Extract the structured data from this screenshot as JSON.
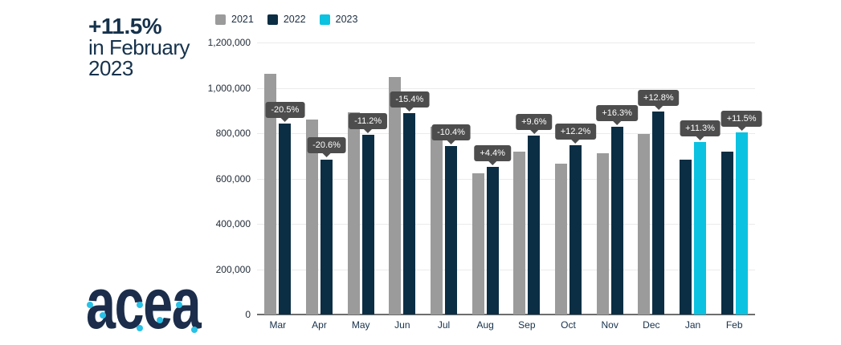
{
  "headline": {
    "line1": "+11.5%",
    "line2": "in February",
    "line3": "2023"
  },
  "legend": {
    "items": [
      {
        "label": "2021",
        "color": "#9b9b9b"
      },
      {
        "label": "2022",
        "color": "#0b2e44"
      },
      {
        "label": "2023",
        "color": "#0bc2e0"
      }
    ]
  },
  "logo": {
    "text": "acea"
  },
  "colors": {
    "accent_navy": "#0b2e44",
    "accent_cyan": "#0bc2e0",
    "bar_gray": "#9b9b9b",
    "tooltip_bg": "#4d4d4d",
    "tooltip_text": "#ffffff",
    "grid": "#ebebeb",
    "axis": "#6e6e6e",
    "text": "#16324c",
    "background": "#ffffff"
  },
  "chart_data": {
    "type": "bar",
    "title": "",
    "xlabel": "",
    "ylabel": "",
    "categories": [
      "Mar",
      "Apr",
      "May",
      "Jun",
      "Jul",
      "Aug",
      "Sep",
      "Oct",
      "Nov",
      "Dec",
      "Jan",
      "Feb"
    ],
    "y_axis": {
      "min": 0,
      "max": 1200000,
      "tick_labels": [
        "1,200,000",
        "1,000,000",
        "800,000",
        "600,000",
        "400,000",
        "200,000",
        "0"
      ],
      "grid": true
    },
    "legend_position": "top-left",
    "series": [
      {
        "name": "2021",
        "color": "#9b9b9b",
        "values": [
          1062000,
          862000,
          892000,
          1048000,
          828000,
          623000,
          719000,
          665000,
          713000,
          795000,
          null,
          null
        ]
      },
      {
        "name": "2022",
        "color": "#0b2e44",
        "values": [
          844000,
          685000,
          792000,
          887000,
          742000,
          650000,
          788000,
          746000,
          830000,
          897000,
          683000,
          720000
        ]
      },
      {
        "name": "2023",
        "color": "#0bc2e0",
        "values": [
          null,
          null,
          null,
          null,
          null,
          null,
          null,
          null,
          null,
          null,
          760000,
          803000
        ]
      }
    ],
    "point_labels": [
      "-20.5%",
      "-20.6%",
      "-11.2%",
      "-15.4%",
      "-10.4%",
      "+4.4%",
      "+9.6%",
      "+12.2%",
      "+16.3%",
      "+12.8%",
      "+11.3%",
      "+11.5%"
    ]
  }
}
